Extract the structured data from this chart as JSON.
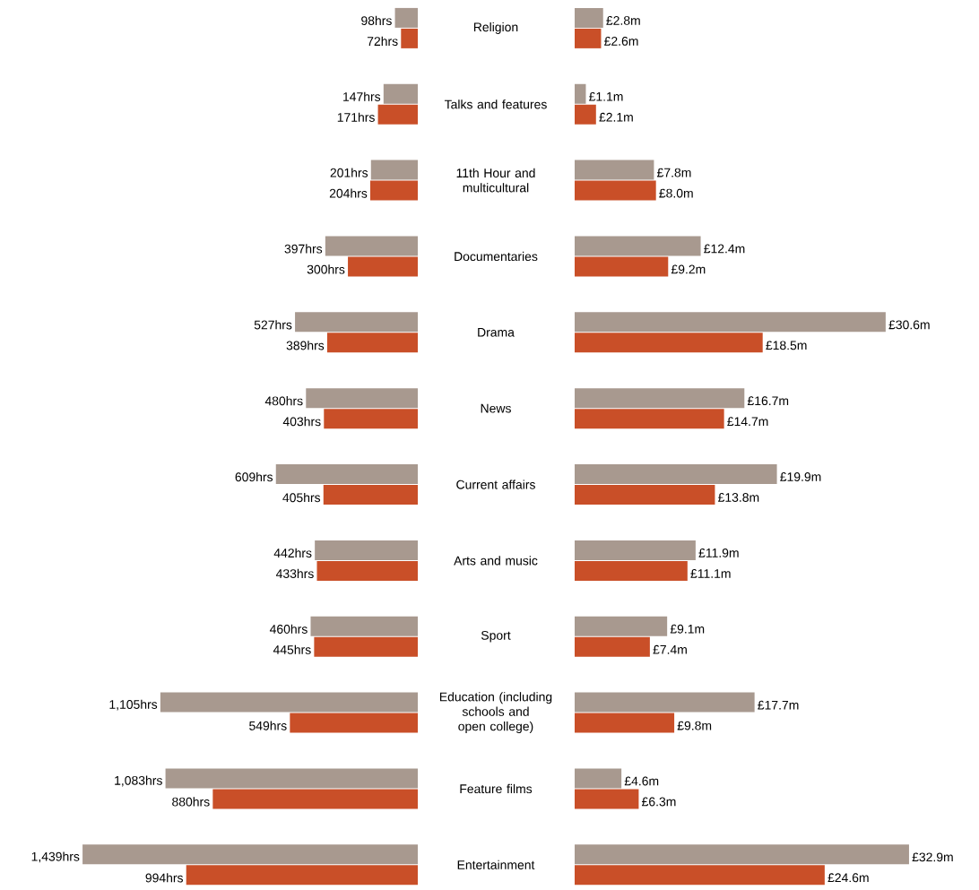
{
  "chart_data": [
    {
      "type": "bar",
      "orientation": "horizontal",
      "categories": [
        "Religion",
        "Talks and features",
        "11th Hour and multicultural",
        "Documentaries",
        "Drama",
        "News",
        "Current affairs",
        "Arts and music",
        "Sport",
        "Education (including schools and open college)",
        "Feature films",
        "Entertainment"
      ],
      "tick_labels": "y",
      "series": [
        {
          "color": "#a8998f",
          "values": [
            98,
            147,
            201,
            397,
            527,
            480,
            609,
            442,
            460,
            1105,
            1083,
            1439
          ],
          "value_labels": [
            "98hrs",
            "147hrs",
            "201hrs",
            "397hrs",
            "527hrs",
            "480hrs",
            "609hrs",
            "442hrs",
            "460hrs",
            "1,105hrs",
            "1,083hrs",
            "1,439hrs"
          ]
        },
        {
          "color": "#c94f28",
          "values": [
            72,
            171,
            204,
            300,
            389,
            403,
            405,
            433,
            445,
            549,
            880,
            994
          ],
          "value_labels": [
            "72hrs",
            "171hrs",
            "204hrs",
            "300hrs",
            "389hrs",
            "403hrs",
            "405hrs",
            "433hrs",
            "445hrs",
            "549hrs",
            "880hrs",
            "994hrs"
          ]
        }
      ]
    },
    {
      "type": "bar",
      "orientation": "horizontal",
      "categories": [
        null,
        null,
        null,
        null,
        null,
        null,
        null,
        null,
        null,
        null,
        null,
        null
      ],
      "tick_labels": false,
      "series": [
        {
          "color": "#a8998f",
          "values": [
            2.8,
            1.1,
            7.8,
            12.4,
            30.6,
            16.7,
            19.9,
            11.9,
            9.1,
            17.7,
            4.6,
            32.9
          ],
          "value_labels": [
            "£2.8m",
            "£1.1m",
            "£7.8m",
            "£12.4m",
            "£30.6m",
            "£16.7m",
            "£19.9m",
            "£11.9m",
            "£9.1m",
            "£17.7m",
            "£4.6m",
            "£32.9m"
          ]
        },
        {
          "color": "#c94f28",
          "values": [
            2.6,
            2.1,
            8.0,
            9.2,
            18.5,
            14.7,
            13.8,
            11.1,
            7.4,
            9.8,
            6.3,
            24.6
          ],
          "value_labels": [
            "£2.6m",
            "£2.1m",
            "£8.0m",
            "£9.2m",
            "£18.5m",
            "£14.7m",
            "£13.8m",
            "£11.1m",
            "£7.4m",
            "£9.8m",
            "£6.3m",
            "£24.6m"
          ]
        }
      ]
    }
  ]
}
